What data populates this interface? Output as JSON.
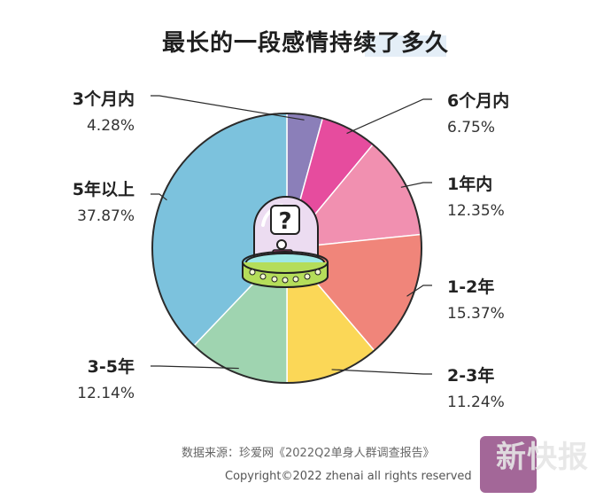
{
  "title": "最长的一段感情持续了多久",
  "chart_data": {
    "type": "pie",
    "categories": [
      "3个月内",
      "6个月内",
      "1年内",
      "1-2年",
      "2-3年",
      "3-5年",
      "5年以上"
    ],
    "values": [
      4.28,
      6.75,
      12.35,
      15.37,
      11.24,
      12.14,
      37.87
    ],
    "value_labels": [
      "4.28%",
      "6.75%",
      "12.35%",
      "15.37%",
      "11.24%",
      "12.14%",
      "37.87%"
    ],
    "colors": [
      "#8b7fb9",
      "#e64c9e",
      "#f190b0",
      "#f0857a",
      "#fbd757",
      "#9fd4b0",
      "#7cc2dd"
    ],
    "legend": "none"
  },
  "footer": {
    "source": "数据来源：珍爱网《2022Q2单身人群调查报告》",
    "copyright": "Copyright©2022 zhenai all rights reserved"
  },
  "watermark": {
    "text": "新快报"
  }
}
